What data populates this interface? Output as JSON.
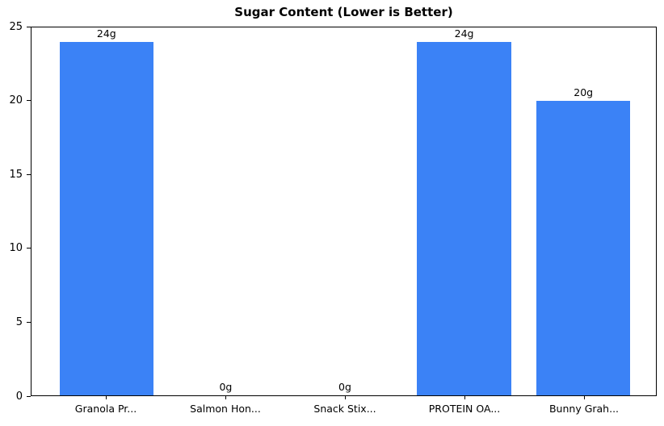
{
  "chart_data": {
    "type": "bar",
    "title": "Sugar Content (Lower is Better)",
    "categories": [
      "Granola Pr...",
      "Salmon Hon...",
      "Snack Stix...",
      "PROTEIN OA...",
      "Bunny Grah..."
    ],
    "values": [
      24,
      0,
      0,
      24,
      20
    ],
    "bar_labels": [
      "24g",
      "0g",
      "0g",
      "24g",
      "20g"
    ],
    "xlabel": "",
    "ylabel": "",
    "ylim": [
      0,
      25
    ],
    "yticks": [
      0,
      5,
      10,
      15,
      20,
      25
    ],
    "grid": "off",
    "legend": "none",
    "bar_color": "#3b82f6",
    "axis_color": "#000000",
    "background_color": "#ffffff"
  }
}
